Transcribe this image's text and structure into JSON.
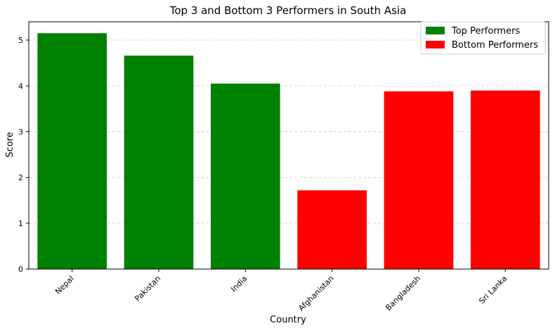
{
  "chart_data": {
    "type": "bar",
    "title": "Top 3 and Bottom 3 Performers in South Asia",
    "xlabel": "Country",
    "ylabel": "Score",
    "categories": [
      "Nepal",
      "Pakistan",
      "India",
      "Afghanistan",
      "Bangladesh",
      "Sri Lanka"
    ],
    "series": [
      {
        "name": "Top Performers",
        "color": "#008000",
        "values": [
          5.15,
          4.66,
          4.05,
          null,
          null,
          null
        ]
      },
      {
        "name": "Bottom Performers",
        "color": "#ff0000",
        "values": [
          null,
          null,
          null,
          1.72,
          3.88,
          3.9
        ]
      }
    ],
    "yticks": [
      "0",
      "1",
      "2",
      "3",
      "4",
      "5"
    ],
    "ylim": [
      0,
      5.4
    ],
    "grid": "y-dashed",
    "legend_position": "top-right"
  }
}
